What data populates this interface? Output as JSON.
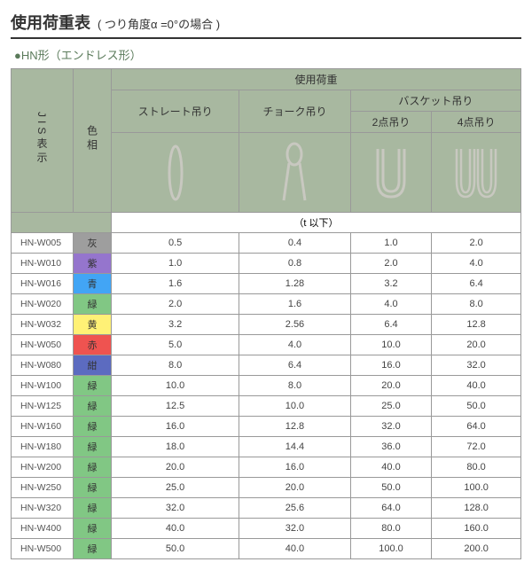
{
  "title": {
    "main": "使用荷重表",
    "sub": "( つり角度α =0°の場合 )"
  },
  "subtitle": "●HN形（エンドレス形）",
  "headers": {
    "jis": "JIS表示",
    "colorCol": "色相",
    "loadGroup": "使用荷重",
    "straight": "ストレート吊り",
    "choke": "チョーク吊り",
    "basketGroup": "バスケット吊り",
    "basket2": "2点吊り",
    "basket4": "4点吊り",
    "unit": "（t 以下）"
  },
  "colors": {
    "灰": "#9e9e9e",
    "紫": "#9575cd",
    "青": "#42a5f5",
    "緑": "#81c784",
    "黄": "#fff176",
    "赤": "#ef5350",
    "紺": "#5c6bc0",
    "hdrBg": "#a8b8a0",
    "border": "#999999"
  },
  "iconStroke": "#d0d0c8",
  "rows": [
    {
      "jis": "HN-W005",
      "c": "灰",
      "v": [
        "0.5",
        "0.4",
        "1.0",
        "2.0"
      ]
    },
    {
      "jis": "HN-W010",
      "c": "紫",
      "v": [
        "1.0",
        "0.8",
        "2.0",
        "4.0"
      ]
    },
    {
      "jis": "HN-W016",
      "c": "青",
      "v": [
        "1.6",
        "1.28",
        "3.2",
        "6.4"
      ]
    },
    {
      "jis": "HN-W020",
      "c": "緑",
      "v": [
        "2.0",
        "1.6",
        "4.0",
        "8.0"
      ]
    },
    {
      "jis": "HN-W032",
      "c": "黄",
      "v": [
        "3.2",
        "2.56",
        "6.4",
        "12.8"
      ]
    },
    {
      "jis": "HN-W050",
      "c": "赤",
      "v": [
        "5.0",
        "4.0",
        "10.0",
        "20.0"
      ]
    },
    {
      "jis": "HN-W080",
      "c": "紺",
      "v": [
        "8.0",
        "6.4",
        "16.0",
        "32.0"
      ]
    },
    {
      "jis": "HN-W100",
      "c": "緑",
      "v": [
        "10.0",
        "8.0",
        "20.0",
        "40.0"
      ]
    },
    {
      "jis": "HN-W125",
      "c": "緑",
      "v": [
        "12.5",
        "10.0",
        "25.0",
        "50.0"
      ]
    },
    {
      "jis": "HN-W160",
      "c": "緑",
      "v": [
        "16.0",
        "12.8",
        "32.0",
        "64.0"
      ]
    },
    {
      "jis": "HN-W180",
      "c": "緑",
      "v": [
        "18.0",
        "14.4",
        "36.0",
        "72.0"
      ]
    },
    {
      "jis": "HN-W200",
      "c": "緑",
      "v": [
        "20.0",
        "16.0",
        "40.0",
        "80.0"
      ]
    },
    {
      "jis": "HN-W250",
      "c": "緑",
      "v": [
        "25.0",
        "20.0",
        "50.0",
        "100.0"
      ]
    },
    {
      "jis": "HN-W320",
      "c": "緑",
      "v": [
        "32.0",
        "25.6",
        "64.0",
        "128.0"
      ]
    },
    {
      "jis": "HN-W400",
      "c": "緑",
      "v": [
        "40.0",
        "32.0",
        "80.0",
        "160.0"
      ]
    },
    {
      "jis": "HN-W500",
      "c": "緑",
      "v": [
        "50.0",
        "40.0",
        "100.0",
        "200.0"
      ]
    }
  ],
  "icons": {
    "straight": "<svg width='30' height='70' viewBox='0 0 30 70'><ellipse cx='15' cy='35' rx='7' ry='30' fill='none' stroke='#c8c8c0' stroke-width='3'/></svg>",
    "choke": "<svg width='40' height='70' viewBox='0 0 40 70'><ellipse cx='20' cy='14' rx='8' ry='12' fill='none' stroke='#c8c8c0' stroke-width='3'/><path d='M14 24 L8 66 M26 24 L32 66' fill='none' stroke='#c8c8c0' stroke-width='3'/></svg>",
    "basket2": "<svg width='50' height='70' viewBox='0 0 50 70'><path d='M10 8 L10 44 Q10 62 25 62 Q40 62 40 44 L40 8' fill='none' stroke='#c8c8c0' stroke-width='3'/><path d='M16 8 L16 44 Q16 56 25 56 Q34 56 34 44 L34 8' fill='none' stroke='#c8c8c0' stroke-width='3'/></svg>",
    "basket4": "<svg width='56' height='70' viewBox='0 0 56 70'><path d='M6 8 L6 44 Q6 62 16 62 Q26 62 26 44 L26 8' fill='none' stroke='#c8c8c0' stroke-width='2.5'/><path d='M11 8 L11 44 Q11 57 16 57 Q21 57 21 44 L21 8' fill='none' stroke='#c8c8c0' stroke-width='2.5'/><path d='M30 8 L30 44 Q30 62 40 62 Q50 62 50 44 L50 8' fill='none' stroke='#c8c8c0' stroke-width='2.5'/><path d='M35 8 L35 44 Q35 57 40 57 Q45 57 45 44 L45 8' fill='none' stroke='#c8c8c0' stroke-width='2.5'/></svg>"
  }
}
